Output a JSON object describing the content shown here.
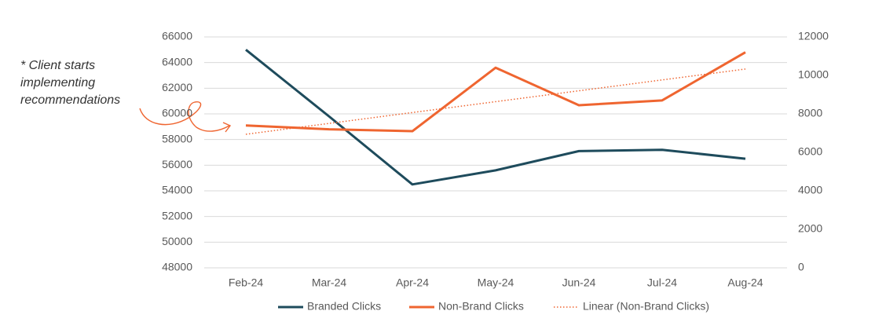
{
  "chart_data": {
    "type": "line",
    "annotation": [
      "* Client starts",
      "implementing",
      "recommendations"
    ],
    "categories": [
      "Feb-24",
      "Mar-24",
      "Apr-24",
      "May-24",
      "Jun-24",
      "Jul-24",
      "Aug-24"
    ],
    "series": [
      {
        "name": "Branded Clicks",
        "color": "#1e4b5c",
        "style": "solid",
        "axis": "y",
        "values": [
          65000,
          59800,
          54500,
          55600,
          57100,
          57200,
          56500
        ]
      },
      {
        "name": "Non-Brand Clicks",
        "color": "#ef6530",
        "style": "solid",
        "axis": "y2",
        "values": [
          7400,
          7200,
          7100,
          10400,
          8450,
          8700,
          11200
        ]
      },
      {
        "name": "Linear (Non-Brand Clicks)",
        "color": "#ef6530",
        "style": "dotted",
        "axis": "y2",
        "values": [
          6940,
          7505,
          8070,
          8635,
          9200,
          9765,
          10330
        ]
      }
    ],
    "ylim": [
      48000,
      66000
    ],
    "yticks": [
      48000,
      50000,
      52000,
      54000,
      56000,
      58000,
      60000,
      62000,
      64000,
      66000
    ],
    "y2lim": [
      0,
      12000
    ],
    "y2ticks": [
      0,
      2000,
      4000,
      6000,
      8000,
      10000,
      12000
    ],
    "grid": true
  }
}
